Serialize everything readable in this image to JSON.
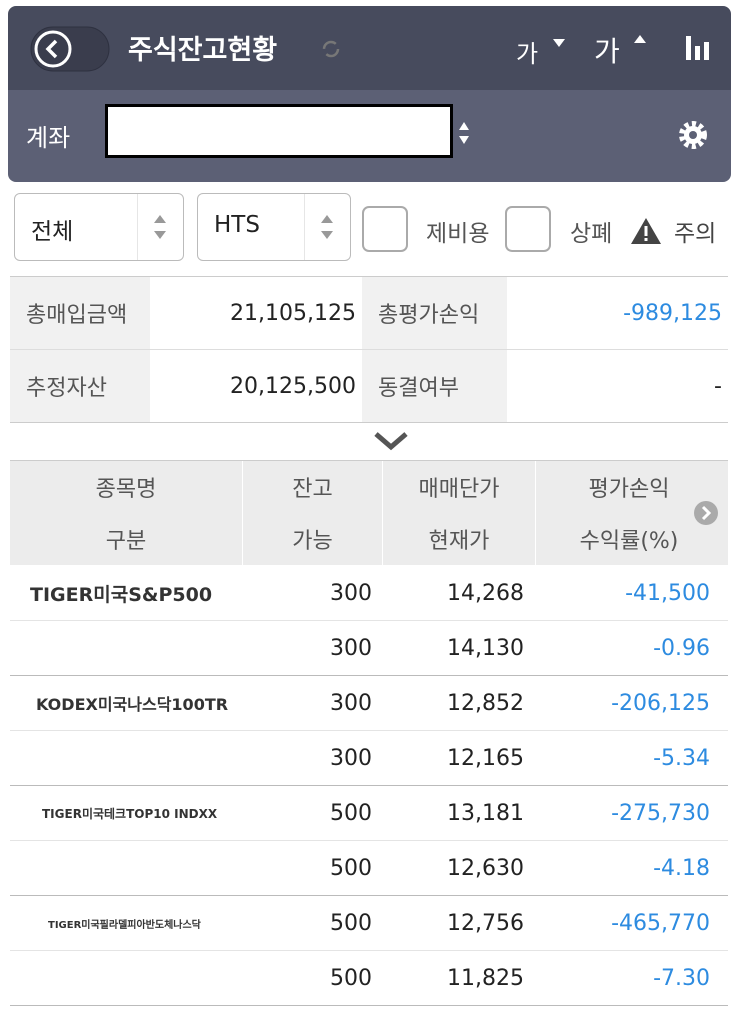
{
  "header": {
    "title": "주식잔고현황",
    "font_decrease": "가",
    "font_increase": "가"
  },
  "account": {
    "label": "계좌"
  },
  "filters": {
    "market": "전체",
    "source": "HTS",
    "checkboxes": [
      "제비용",
      "상폐"
    ],
    "warning": "주의"
  },
  "summary": {
    "rows": [
      [
        "총매입금액",
        "21,105,125",
        "총평가손익",
        "-989,125"
      ],
      [
        "추정자산",
        "20,125,500",
        "동결여부",
        "-"
      ]
    ]
  },
  "table": {
    "header": [
      [
        "종목명",
        "잔고",
        "매매단가",
        "평가손익"
      ],
      [
        "구분",
        "가능",
        "현재가",
        "수익률(%)"
      ]
    ],
    "rows": [
      {
        "name": "TIGER미국S&P500",
        "balance": "300",
        "price": "14,268",
        "pnl": "-41,500",
        "available": "300",
        "current": "14,130",
        "rate": "-0.96"
      },
      {
        "name": "KODEX미국나스닥100TR",
        "balance": "300",
        "price": "12,852",
        "pnl": "-206,125",
        "available": "300",
        "current": "12,165",
        "rate": "-5.34"
      },
      {
        "name": "TIGER미국테크TOP10 INDXX",
        "balance": "500",
        "price": "13,181",
        "pnl": "-275,730",
        "available": "500",
        "current": "12,630",
        "rate": "-4.18"
      },
      {
        "name": "TIGER미국필라델피아반도체나스닥",
        "balance": "500",
        "price": "12,756",
        "pnl": "-465,770",
        "available": "500",
        "current": "11,825",
        "rate": "-7.30"
      }
    ]
  }
}
